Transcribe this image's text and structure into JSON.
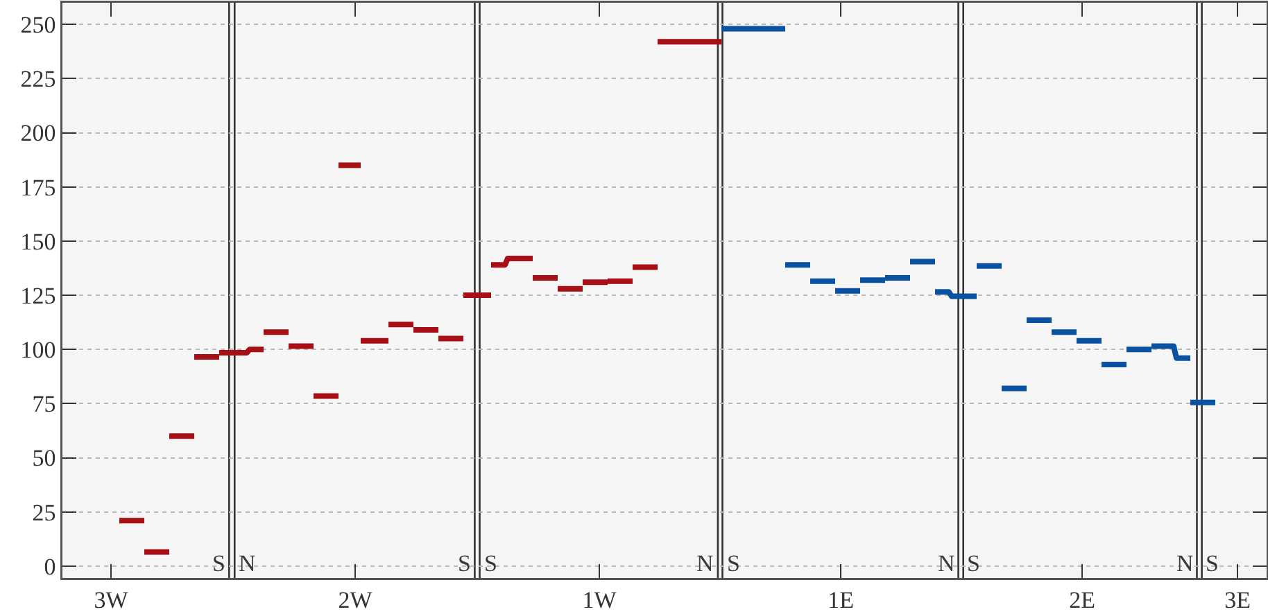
{
  "chart_data": {
    "type": "line",
    "categories": [
      null,
      null,
      null,
      null,
      null,
      null,
      null,
      null,
      null,
      null,
      null,
      null,
      null,
      null,
      null,
      null,
      null,
      "3W",
      null,
      null,
      null,
      null,
      null,
      null,
      null,
      null,
      null,
      null,
      null,
      null,
      null,
      null,
      null,
      null,
      null,
      null,
      null,
      null,
      null,
      null,
      null,
      null,
      null,
      null,
      null,
      null,
      null,
      null,
      null,
      null,
      null,
      null,
      null,
      null,
      null,
      null,
      null,
      null,
      null,
      null,
      null,
      null,
      null,
      null,
      null,
      null,
      null,
      null,
      null,
      null,
      null,
      null,
      null,
      null,
      null,
      null,
      null,
      null,
      null,
      null,
      null,
      null,
      null,
      null,
      null,
      null,
      null,
      null,
      null,
      null,
      null,
      null,
      null,
      null,
      null,
      null,
      null,
      null,
      null,
      null,
      null,
      null,
      null,
      null,
      null,
      "2W",
      null,
      null,
      null,
      null,
      null,
      null,
      null,
      null,
      null,
      null,
      null,
      null,
      null,
      null,
      null,
      null,
      null,
      null,
      null,
      null,
      null,
      null,
      null,
      null,
      null,
      null,
      null,
      null,
      null,
      null,
      null,
      null,
      null,
      null,
      null,
      null,
      null,
      null,
      null,
      null,
      null,
      null,
      null,
      null,
      null,
      null,
      null,
      null,
      null,
      null,
      null,
      null,
      null,
      null,
      null,
      null,
      null,
      null,
      null,
      null,
      null,
      null,
      null,
      null,
      null,
      null,
      null,
      null,
      null,
      null,
      null,
      null,
      null,
      null,
      null,
      null,
      null,
      null,
      null,
      null,
      null,
      null,
      null,
      null,
      null,
      null,
      null,
      "1W",
      null,
      null,
      null,
      null,
      null,
      null,
      null,
      null,
      null,
      null,
      null,
      null,
      null,
      null,
      null,
      null,
      null,
      null,
      null,
      null,
      null,
      null,
      null,
      null,
      null,
      null,
      null,
      null,
      null,
      null,
      null,
      null,
      null,
      null,
      null,
      null,
      null,
      null,
      null,
      null,
      null,
      null,
      null,
      null,
      null,
      null,
      null,
      null,
      null,
      null,
      null,
      null,
      null,
      null,
      null,
      null,
      null,
      null,
      null,
      null,
      null,
      null,
      null,
      null,
      null,
      null,
      null,
      null,
      null,
      null,
      null,
      null,
      null,
      null,
      null,
      null,
      null,
      null,
      null,
      null,
      null,
      null,
      null,
      null,
      null,
      null,
      "1E",
      null,
      null,
      null,
      null,
      null,
      null,
      null,
      null,
      null,
      null,
      null,
      null,
      null,
      null,
      null,
      null,
      null,
      null,
      null,
      null,
      null,
      null,
      null,
      null,
      null,
      null,
      null,
      null,
      null,
      null,
      null,
      null,
      null,
      null,
      null,
      null,
      null,
      null,
      null,
      null,
      null,
      null,
      null,
      null,
      null,
      null,
      null,
      null,
      null,
      null,
      null,
      null,
      null,
      null,
      null,
      null,
      null,
      null,
      null,
      null,
      null,
      null,
      null,
      null,
      null,
      null,
      null,
      null,
      null,
      null,
      null,
      null,
      null,
      null,
      null,
      null,
      null,
      null,
      null,
      null,
      null,
      null,
      null,
      null,
      null,
      null,
      "2E",
      null,
      null,
      null,
      null,
      null,
      null,
      null,
      null,
      null,
      null,
      null,
      null,
      null,
      null,
      null,
      null,
      null,
      null,
      null,
      null,
      null,
      null,
      null,
      null,
      null,
      null,
      null,
      null,
      null,
      null,
      null,
      null,
      null,
      null,
      null,
      null,
      null,
      null,
      null,
      null,
      null,
      null,
      null,
      null,
      null,
      null,
      null,
      null,
      null,
      null,
      null,
      null,
      null,
      null,
      null,
      "3E",
      null,
      null,
      null,
      null,
      null,
      null,
      null,
      null,
      null,
      null
    ],
    "series": [
      {
        "color": "#a50f15",
        "values": [
          null,
          null,
          null,
          null,
          null,
          null,
          null,
          null,
          null,
          null,
          null,
          null,
          null,
          null,
          null,
          null,
          null,
          null,
          null,
          null,
          null,
          21,
          21,
          21,
          21,
          21,
          21,
          21,
          21,
          null,
          6.5,
          6.5,
          6.5,
          6.5,
          6.5,
          6.5,
          6.5,
          6.5,
          null,
          60,
          60,
          60,
          60,
          60,
          60,
          60,
          60,
          null,
          96.5,
          96.5,
          96.5,
          96.5,
          96.5,
          96.5,
          96.5,
          96.5,
          null,
          98.5,
          98.5,
          98.5,
          98.5,
          98.5,
          98.5,
          98.5,
          98.5,
          98.5,
          98.5,
          100,
          100,
          100,
          100,
          100,
          null,
          108,
          108,
          108,
          108,
          108,
          108,
          108,
          108,
          null,
          101.5,
          101.5,
          101.5,
          101.5,
          101.5,
          101.5,
          101.5,
          101.5,
          null,
          78.5,
          78.5,
          78.5,
          78.5,
          78.5,
          78.5,
          78.5,
          78.5,
          null,
          185,
          185,
          185,
          185,
          185,
          185,
          185,
          null,
          104,
          104,
          104,
          104,
          104,
          104,
          104,
          104,
          104,
          null,
          111.5,
          111.5,
          111.5,
          111.5,
          111.5,
          111.5,
          111.5,
          111.5,
          null,
          109,
          109,
          109,
          109,
          109,
          109,
          109,
          109,
          null,
          105,
          105,
          105,
          105,
          105,
          105,
          105,
          105,
          null,
          125,
          125,
          125,
          125,
          125,
          125,
          125,
          125,
          125,
          null,
          139,
          139,
          139,
          139,
          139,
          142,
          142,
          142,
          142,
          142,
          142,
          142,
          142,
          142,
          null,
          133,
          133,
          133,
          133,
          133,
          133,
          133,
          133,
          null,
          128,
          128,
          128,
          128,
          128,
          128,
          128,
          128,
          null,
          131,
          131,
          131,
          131,
          131,
          131,
          131,
          131,
          null,
          131.5,
          131.5,
          131.5,
          131.5,
          131.5,
          131.5,
          131.5,
          131.5,
          null,
          138,
          138,
          138,
          138,
          138,
          138,
          138,
          138,
          null,
          242,
          242,
          242,
          242,
          242,
          242,
          242,
          242,
          242,
          242,
          242,
          242,
          242,
          242,
          242,
          242,
          242,
          242,
          242,
          242,
          242,
          242,
          null,
          null,
          null,
          null,
          null,
          null,
          null,
          null,
          null,
          null,
          null,
          null,
          null,
          null,
          null,
          null,
          null,
          null,
          null,
          null,
          null,
          null,
          null,
          null,
          null,
          null,
          null,
          null,
          null,
          null,
          null,
          null,
          null,
          null,
          null,
          null,
          null,
          null,
          null,
          null,
          null,
          null,
          null,
          null,
          null,
          null,
          null,
          null,
          null,
          null,
          null,
          null,
          null,
          null,
          null,
          null,
          null,
          null,
          null,
          null,
          null,
          null,
          null,
          null,
          null,
          null,
          null,
          null,
          null,
          null,
          null,
          null,
          null,
          null,
          null,
          null,
          null,
          null,
          null,
          null,
          null,
          null,
          null,
          null,
          null,
          null,
          null,
          null,
          null,
          null,
          null,
          null,
          null,
          null,
          null,
          null,
          null,
          null,
          null,
          null,
          null,
          null,
          null,
          null,
          null,
          null,
          null,
          null,
          null,
          null,
          null,
          null,
          null,
          null,
          null,
          null,
          null,
          null,
          null,
          null,
          null,
          null,
          null,
          null,
          null,
          null,
          null,
          null,
          null,
          null,
          null,
          null,
          null,
          null,
          null,
          null,
          null,
          null,
          null,
          null,
          null,
          null,
          null,
          null,
          null,
          null,
          null,
          null,
          null,
          null,
          null,
          null,
          null,
          null,
          null,
          null,
          null,
          null,
          null,
          null,
          null,
          null,
          null,
          null,
          null,
          null,
          null,
          null,
          null,
          null,
          null,
          null,
          null,
          null,
          null,
          null,
          null,
          null,
          null,
          null,
          null,
          null,
          null,
          null,
          null,
          null,
          null,
          null,
          null,
          null,
          null,
          null,
          null,
          null,
          null,
          null,
          null
        ]
      },
      {
        "color": "#0a52a0",
        "values": [
          null,
          null,
          null,
          null,
          null,
          null,
          null,
          null,
          null,
          null,
          null,
          null,
          null,
          null,
          null,
          null,
          null,
          null,
          null,
          null,
          null,
          null,
          null,
          null,
          null,
          null,
          null,
          null,
          null,
          null,
          null,
          null,
          null,
          null,
          null,
          null,
          null,
          null,
          null,
          null,
          null,
          null,
          null,
          null,
          null,
          null,
          null,
          null,
          null,
          null,
          null,
          null,
          null,
          null,
          null,
          null,
          null,
          null,
          null,
          null,
          null,
          null,
          null,
          null,
          null,
          null,
          null,
          null,
          null,
          null,
          null,
          null,
          null,
          null,
          null,
          null,
          null,
          null,
          null,
          null,
          null,
          null,
          null,
          null,
          null,
          null,
          null,
          null,
          null,
          null,
          null,
          null,
          null,
          null,
          null,
          null,
          null,
          null,
          null,
          null,
          null,
          null,
          null,
          null,
          null,
          null,
          null,
          null,
          null,
          null,
          null,
          null,
          null,
          null,
          null,
          null,
          null,
          null,
          null,
          null,
          null,
          null,
          null,
          null,
          null,
          null,
          null,
          null,
          null,
          null,
          null,
          null,
          null,
          null,
          null,
          null,
          null,
          null,
          null,
          null,
          null,
          null,
          null,
          null,
          null,
          null,
          null,
          null,
          null,
          null,
          null,
          null,
          null,
          null,
          null,
          null,
          null,
          null,
          null,
          null,
          null,
          null,
          null,
          null,
          null,
          null,
          null,
          null,
          null,
          null,
          null,
          null,
          null,
          null,
          null,
          null,
          null,
          null,
          null,
          null,
          null,
          null,
          null,
          null,
          null,
          null,
          null,
          null,
          null,
          null,
          null,
          null,
          null,
          null,
          null,
          null,
          null,
          null,
          null,
          null,
          null,
          null,
          null,
          null,
          null,
          null,
          null,
          null,
          null,
          null,
          null,
          null,
          null,
          null,
          null,
          null,
          null,
          null,
          null,
          null,
          null,
          null,
          null,
          null,
          null,
          null,
          null,
          null,
          null,
          null,
          null,
          null,
          null,
          null,
          null,
          null,
          null,
          null,
          248,
          248,
          248,
          248,
          248,
          248,
          248,
          248,
          248,
          248,
          248,
          248,
          248,
          248,
          248,
          248,
          248,
          248,
          248,
          248,
          248,
          248,
          null,
          139,
          139,
          139,
          139,
          139,
          139,
          139,
          139,
          null,
          131.5,
          131.5,
          131.5,
          131.5,
          131.5,
          131.5,
          131.5,
          131.5,
          null,
          127,
          127,
          127,
          127,
          127,
          127,
          127,
          127,
          null,
          132,
          132,
          132,
          132,
          132,
          132,
          132,
          132,
          null,
          133,
          133,
          133,
          133,
          133,
          133,
          133,
          133,
          null,
          140.5,
          140.5,
          140.5,
          140.5,
          140.5,
          140.5,
          140.5,
          140.5,
          null,
          126.5,
          126.5,
          126.5,
          126.5,
          126.5,
          124.5,
          124.5,
          124.5,
          124.5,
          124.5,
          124.5,
          124.5,
          124.5,
          124.5,
          null,
          138.5,
          138.5,
          138.5,
          138.5,
          138.5,
          138.5,
          138.5,
          138.5,
          null,
          82,
          82,
          82,
          82,
          82,
          82,
          82,
          82,
          null,
          113.5,
          113.5,
          113.5,
          113.5,
          113.5,
          113.5,
          113.5,
          113.5,
          null,
          108,
          108,
          108,
          108,
          108,
          108,
          108,
          108,
          null,
          104,
          104,
          104,
          104,
          104,
          104,
          104,
          104,
          null,
          93,
          93,
          93,
          93,
          93,
          93,
          93,
          93,
          null,
          100,
          100,
          100,
          100,
          100,
          100,
          100,
          100,
          null,
          101.5,
          101.5,
          101.5,
          101.5,
          101.5,
          101.5,
          101.5,
          101.5,
          96,
          96,
          96,
          96,
          96,
          null,
          75.5,
          75.5,
          75.5,
          75.5,
          75.5,
          75.5,
          75.5,
          75.5,
          null,
          null,
          null,
          null,
          null,
          null,
          null,
          null,
          null,
          null,
          null,
          null,
          null,
          null,
          null,
          null,
          null,
          null,
          null
        ]
      }
    ],
    "ylim": [
      -5.5,
      260
    ],
    "yticks": [
      0,
      25,
      50,
      75,
      100,
      125,
      150,
      175,
      200,
      225,
      250
    ],
    "grid": "y",
    "annotations": [
      "S",
      "N",
      "S",
      "S",
      "N",
      "S",
      "N",
      "S",
      "N",
      "S"
    ]
  }
}
